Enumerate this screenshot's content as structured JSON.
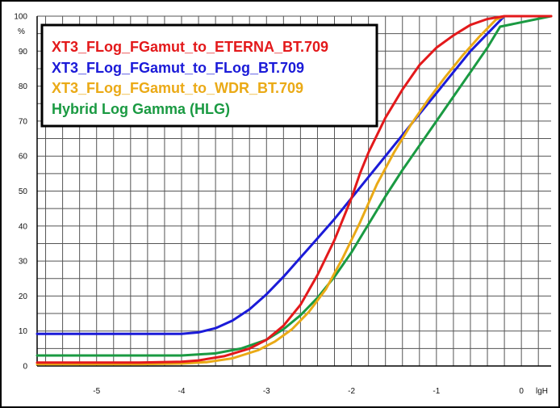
{
  "chart_data": {
    "type": "line",
    "title": "",
    "xlabel": "lgH",
    "ylabel": "%",
    "xlim": [
      -5.7,
      0.35
    ],
    "ylim": [
      0,
      100
    ],
    "x_ticks": [
      -5,
      -4,
      -3,
      -2,
      -1,
      0
    ],
    "y_ticks": [
      0,
      10,
      20,
      30,
      40,
      50,
      60,
      70,
      80,
      90,
      100
    ],
    "grid": true,
    "legend_position": "top-left",
    "series": [
      {
        "name": "XT3_FLog_FGamut_to_ETERNA_BT.709",
        "color": "#e3191b",
        "x": [
          -5.7,
          -4.5,
          -4.0,
          -3.8,
          -3.5,
          -3.2,
          -3.0,
          -2.8,
          -2.6,
          -2.4,
          -2.2,
          -2.0,
          -1.9,
          -1.8,
          -1.7,
          -1.6,
          -1.5,
          -1.4,
          -1.2,
          -1.0,
          -0.8,
          -0.6,
          -0.4,
          -0.2,
          0.35
        ],
        "y": [
          1.0,
          1.0,
          1.2,
          1.6,
          2.8,
          5.0,
          7.5,
          11.5,
          17.5,
          26,
          36,
          48,
          55,
          61,
          66,
          71,
          75,
          79,
          86,
          91,
          94.5,
          97.5,
          99.2,
          100,
          100
        ]
      },
      {
        "name": "XT3_FLog_FGamut_to_FLog_BT.709",
        "color": "#1b1bd8",
        "x": [
          -5.7,
          -4.0,
          -3.8,
          -3.6,
          -3.4,
          -3.2,
          -3.0,
          -2.8,
          -2.6,
          -2.4,
          -2.2,
          -2.0,
          -1.8,
          -1.6,
          -1.4,
          -1.2,
          -1.0,
          -0.8,
          -0.6,
          -0.4,
          -0.2,
          0.35
        ],
        "y": [
          9.2,
          9.2,
          9.6,
          10.8,
          13,
          16.2,
          20.5,
          25.5,
          31,
          36.5,
          42,
          48,
          54,
          60,
          66,
          72,
          78,
          84,
          90,
          95,
          100,
          100
        ]
      },
      {
        "name": "XT3_FLog_FGamut_to_WDR_BT.709",
        "color": "#eaaa16",
        "x": [
          -5.7,
          -4.5,
          -4.0,
          -3.7,
          -3.4,
          -3.1,
          -2.9,
          -2.7,
          -2.5,
          -2.3,
          -2.1,
          -1.9,
          -1.7,
          -1.5,
          -1.3,
          -1.1,
          -0.9,
          -0.7,
          -0.5,
          -0.3,
          -0.2,
          0.35
        ],
        "y": [
          0.5,
          0.5,
          0.7,
          1.1,
          2.2,
          4.5,
          7,
          10.5,
          15.5,
          22,
          31,
          41,
          52,
          61,
          69,
          76,
          82.5,
          88.5,
          94,
          99,
          100,
          100
        ]
      },
      {
        "name": "Hybrid Log Gamma (HLG)",
        "color": "#1a9a42",
        "x": [
          -5.7,
          -4.0,
          -3.6,
          -3.3,
          -3.0,
          -2.8,
          -2.6,
          -2.4,
          -2.2,
          -2.0,
          -1.8,
          -1.6,
          -1.4,
          -1.2,
          -1.0,
          -0.8,
          -0.6,
          -0.4,
          -0.25,
          0.35
        ],
        "y": [
          3.0,
          3.0,
          3.6,
          5.0,
          7.5,
          10.5,
          14.5,
          19.5,
          25.5,
          32.5,
          40.5,
          48.5,
          56,
          63,
          70,
          77,
          84,
          91,
          97,
          100
        ]
      }
    ]
  }
}
